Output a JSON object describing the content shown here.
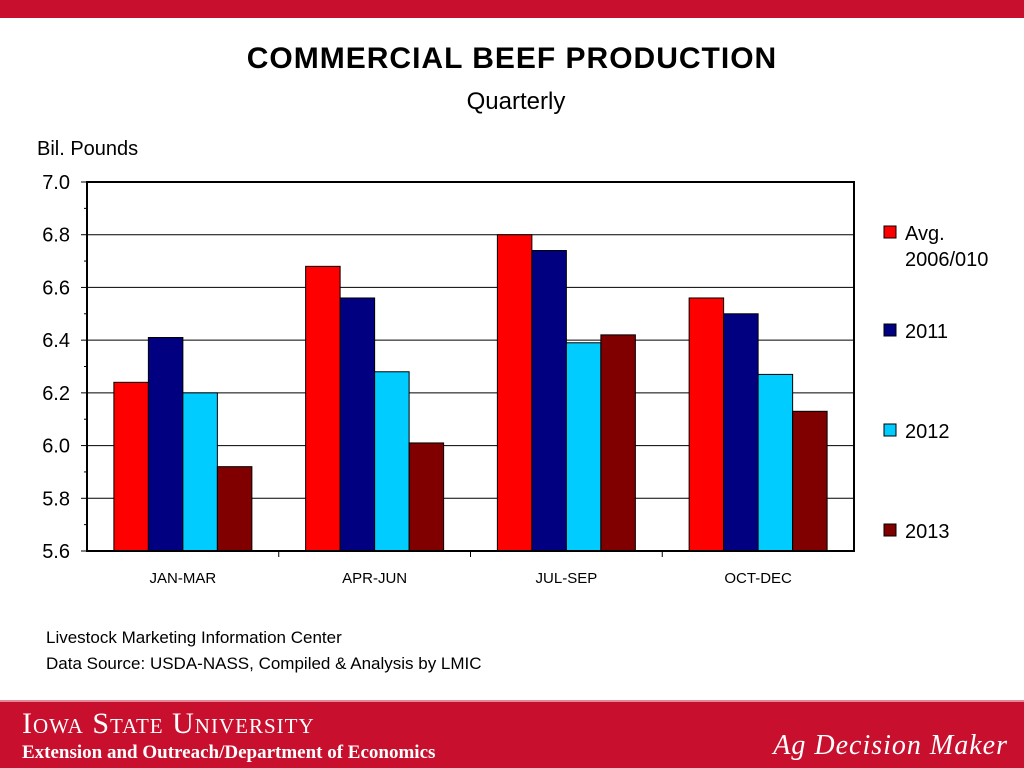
{
  "header": {
    "title": "COMMERCIAL  BEEF  PRODUCTION",
    "subtitle": "Quarterly"
  },
  "source": {
    "line1": "Livestock Marketing Information Center",
    "line2": "Data Source:  USDA-NASS, Compiled & Analysis by LMIC"
  },
  "footer": {
    "university": "Iowa State University",
    "department": "Extension and Outreach/Department of Economics",
    "tagline": "Ag Decision Maker"
  },
  "chart_data": {
    "type": "bar",
    "title": "COMMERCIAL  BEEF  PRODUCTION",
    "subtitle": "Quarterly",
    "ylabel": "Bil. Pounds",
    "xlabel": "",
    "ylim": [
      5.6,
      7.0
    ],
    "ytick_labels": [
      "5.6",
      "5.8",
      "6.0",
      "6.2",
      "6.4",
      "6.6",
      "6.8",
      "7.0"
    ],
    "grid": true,
    "legend_position": "right",
    "categories": [
      "JAN-MAR",
      "APR-JUN",
      "JUL-SEP",
      "OCT-DEC"
    ],
    "series": [
      {
        "name": "Avg. 2006/010",
        "legend_lines": [
          "Avg.",
          "2006/010"
        ],
        "color": "#ff0000",
        "values": [
          6.24,
          6.68,
          6.8,
          6.56
        ]
      },
      {
        "name": "2011",
        "legend_lines": [
          "2011"
        ],
        "color": "#000080",
        "values": [
          6.41,
          6.56,
          6.74,
          6.5
        ]
      },
      {
        "name": "2012",
        "legend_lines": [
          "2012"
        ],
        "color": "#00ccff",
        "values": [
          6.2,
          6.28,
          6.39,
          6.27
        ]
      },
      {
        "name": "2013",
        "legend_lines": [
          "2013"
        ],
        "color": "#800000",
        "values": [
          5.92,
          6.01,
          6.42,
          6.13
        ]
      }
    ]
  }
}
